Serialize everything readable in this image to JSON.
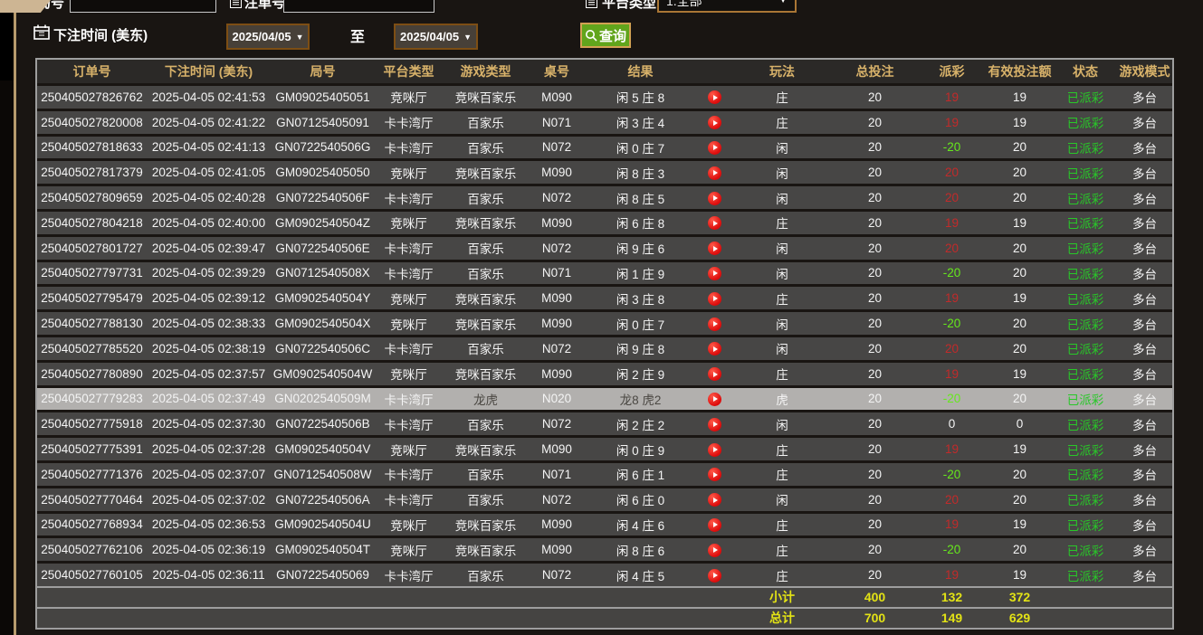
{
  "form": {
    "round_label": "局号",
    "bet_no_label": "注单号",
    "platform_label": "平台类型",
    "platform_value": "1.全部",
    "time_label": "下注时间 (美东)",
    "date_from": "2025/04/05",
    "date_to": "2025/04/05",
    "to_label": "至",
    "search_label": "查询",
    "dropdown_arrow": "▼"
  },
  "colors": {
    "accent_gold": "#d8b26a",
    "status_green": "#28c828",
    "payout_red": "#c22a2a",
    "payout_green": "#66e81c",
    "totals_yellow": "#e3e315",
    "search_button_green": "#61a51c",
    "highlight_gray": "#b2b0ae"
  },
  "table": {
    "headers": [
      "订单号",
      "下注时间 (美东)",
      "局号",
      "平台类型",
      "游戏类型",
      "桌号",
      "结果",
      "",
      "玩法",
      "总投注",
      "派彩",
      "有效投注额",
      "状态",
      "游戏模式"
    ],
    "rows": [
      {
        "order": "250405027826762",
        "time": "2025-04-05 02:41:53",
        "round": "GM09025405051",
        "hall": "竞咪厅",
        "game": "竞咪百家乐",
        "table": "M090",
        "result": "闲 5 庄 8",
        "bet": "庄",
        "total": "20",
        "payout": "19",
        "payout_color": "red",
        "valid": "19",
        "status": "已派彩",
        "mode": "多台",
        "highlight": false
      },
      {
        "order": "250405027820008",
        "time": "2025-04-05 02:41:22",
        "round": "GN07125405091",
        "hall": "卡卡湾厅",
        "game": "百家乐",
        "table": "N071",
        "result": "闲 3 庄 4",
        "bet": "庄",
        "total": "20",
        "payout": "19",
        "payout_color": "red",
        "valid": "19",
        "status": "已派彩",
        "mode": "多台",
        "highlight": false
      },
      {
        "order": "250405027818633",
        "time": "2025-04-05 02:41:13",
        "round": "GN0722540506G",
        "hall": "卡卡湾厅",
        "game": "百家乐",
        "table": "N072",
        "result": "闲 0 庄 7",
        "bet": "闲",
        "total": "20",
        "payout": "-20",
        "payout_color": "green",
        "valid": "20",
        "status": "已派彩",
        "mode": "多台",
        "highlight": false
      },
      {
        "order": "250405027817379",
        "time": "2025-04-05 02:41:05",
        "round": "GM09025405050",
        "hall": "竞咪厅",
        "game": "竞咪百家乐",
        "table": "M090",
        "result": "闲 8 庄 3",
        "bet": "闲",
        "total": "20",
        "payout": "20",
        "payout_color": "red",
        "valid": "20",
        "status": "已派彩",
        "mode": "多台",
        "highlight": false
      },
      {
        "order": "250405027809659",
        "time": "2025-04-05 02:40:28",
        "round": "GN0722540506F",
        "hall": "卡卡湾厅",
        "game": "百家乐",
        "table": "N072",
        "result": "闲 8 庄 5",
        "bet": "闲",
        "total": "20",
        "payout": "20",
        "payout_color": "red",
        "valid": "20",
        "status": "已派彩",
        "mode": "多台",
        "highlight": false
      },
      {
        "order": "250405027804218",
        "time": "2025-04-05 02:40:00",
        "round": "GM0902540504Z",
        "hall": "竞咪厅",
        "game": "竞咪百家乐",
        "table": "M090",
        "result": "闲 6 庄 8",
        "bet": "庄",
        "total": "20",
        "payout": "19",
        "payout_color": "red",
        "valid": "19",
        "status": "已派彩",
        "mode": "多台",
        "highlight": false
      },
      {
        "order": "250405027801727",
        "time": "2025-04-05 02:39:47",
        "round": "GN0722540506E",
        "hall": "卡卡湾厅",
        "game": "百家乐",
        "table": "N072",
        "result": "闲 9 庄 6",
        "bet": "闲",
        "total": "20",
        "payout": "20",
        "payout_color": "red",
        "valid": "20",
        "status": "已派彩",
        "mode": "多台",
        "highlight": false
      },
      {
        "order": "250405027797731",
        "time": "2025-04-05 02:39:29",
        "round": "GN0712540508X",
        "hall": "卡卡湾厅",
        "game": "百家乐",
        "table": "N071",
        "result": "闲 1 庄 9",
        "bet": "闲",
        "total": "20",
        "payout": "-20",
        "payout_color": "green",
        "valid": "20",
        "status": "已派彩",
        "mode": "多台",
        "highlight": false
      },
      {
        "order": "250405027795479",
        "time": "2025-04-05 02:39:12",
        "round": "GM0902540504Y",
        "hall": "竞咪厅",
        "game": "竞咪百家乐",
        "table": "M090",
        "result": "闲 3 庄 8",
        "bet": "庄",
        "total": "20",
        "payout": "19",
        "payout_color": "red",
        "valid": "19",
        "status": "已派彩",
        "mode": "多台",
        "highlight": false
      },
      {
        "order": "250405027788130",
        "time": "2025-04-05 02:38:33",
        "round": "GM0902540504X",
        "hall": "竞咪厅",
        "game": "竞咪百家乐",
        "table": "M090",
        "result": "闲 0 庄 7",
        "bet": "闲",
        "total": "20",
        "payout": "-20",
        "payout_color": "green",
        "valid": "20",
        "status": "已派彩",
        "mode": "多台",
        "highlight": false
      },
      {
        "order": "250405027785520",
        "time": "2025-04-05 02:38:19",
        "round": "GN0722540506C",
        "hall": "卡卡湾厅",
        "game": "百家乐",
        "table": "N072",
        "result": "闲 9 庄 8",
        "bet": "闲",
        "total": "20",
        "payout": "20",
        "payout_color": "red",
        "valid": "20",
        "status": "已派彩",
        "mode": "多台",
        "highlight": false
      },
      {
        "order": "250405027780890",
        "time": "2025-04-05 02:37:57",
        "round": "GM0902540504W",
        "hall": "竞咪厅",
        "game": "竞咪百家乐",
        "table": "M090",
        "result": "闲 2 庄 9",
        "bet": "庄",
        "total": "20",
        "payout": "19",
        "payout_color": "red",
        "valid": "19",
        "status": "已派彩",
        "mode": "多台",
        "highlight": false
      },
      {
        "order": "250405027779283",
        "time": "2025-04-05 02:37:49",
        "round": "GN0202540509M",
        "hall": "卡卡湾厅",
        "game": "龙虎",
        "table": "N020",
        "result": "龙8 虎2",
        "bet": "虎",
        "total": "20",
        "payout": "-20",
        "payout_color": "green",
        "valid": "20",
        "status": "已派彩",
        "mode": "多台",
        "highlight": true
      },
      {
        "order": "250405027775918",
        "time": "2025-04-05 02:37:30",
        "round": "GN0722540506B",
        "hall": "卡卡湾厅",
        "game": "百家乐",
        "table": "N072",
        "result": "闲 2 庄 2",
        "bet": "闲",
        "total": "20",
        "payout": "0",
        "payout_color": "white",
        "valid": "0",
        "status": "已派彩",
        "mode": "多台",
        "highlight": false
      },
      {
        "order": "250405027775391",
        "time": "2025-04-05 02:37:28",
        "round": "GM0902540504V",
        "hall": "竞咪厅",
        "game": "竞咪百家乐",
        "table": "M090",
        "result": "闲 0 庄 9",
        "bet": "庄",
        "total": "20",
        "payout": "19",
        "payout_color": "red",
        "valid": "19",
        "status": "已派彩",
        "mode": "多台",
        "highlight": false
      },
      {
        "order": "250405027771376",
        "time": "2025-04-05 02:37:07",
        "round": "GN0712540508W",
        "hall": "卡卡湾厅",
        "game": "百家乐",
        "table": "N071",
        "result": "闲 6 庄 1",
        "bet": "庄",
        "total": "20",
        "payout": "-20",
        "payout_color": "green",
        "valid": "20",
        "status": "已派彩",
        "mode": "多台",
        "highlight": false
      },
      {
        "order": "250405027770464",
        "time": "2025-04-05 02:37:02",
        "round": "GN0722540506A",
        "hall": "卡卡湾厅",
        "game": "百家乐",
        "table": "N072",
        "result": "闲 6 庄 0",
        "bet": "闲",
        "total": "20",
        "payout": "20",
        "payout_color": "red",
        "valid": "20",
        "status": "已派彩",
        "mode": "多台",
        "highlight": false
      },
      {
        "order": "250405027768934",
        "time": "2025-04-05 02:36:53",
        "round": "GM0902540504U",
        "hall": "竞咪厅",
        "game": "竞咪百家乐",
        "table": "M090",
        "result": "闲 4 庄 6",
        "bet": "庄",
        "total": "20",
        "payout": "19",
        "payout_color": "red",
        "valid": "19",
        "status": "已派彩",
        "mode": "多台",
        "highlight": false
      },
      {
        "order": "250405027762106",
        "time": "2025-04-05 02:36:19",
        "round": "GM0902540504T",
        "hall": "竞咪厅",
        "game": "竞咪百家乐",
        "table": "M090",
        "result": "闲 8 庄 6",
        "bet": "庄",
        "total": "20",
        "payout": "-20",
        "payout_color": "green",
        "valid": "20",
        "status": "已派彩",
        "mode": "多台",
        "highlight": false
      },
      {
        "order": "250405027760105",
        "time": "2025-04-05 02:36:11",
        "round": "GN07225405069",
        "hall": "卡卡湾厅",
        "game": "百家乐",
        "table": "N072",
        "result": "闲 4 庄 5",
        "bet": "庄",
        "total": "20",
        "payout": "19",
        "payout_color": "red",
        "valid": "19",
        "status": "已派彩",
        "mode": "多台",
        "highlight": false
      }
    ],
    "subtotal": {
      "label": "小计",
      "total": "400",
      "payout": "132",
      "valid": "372"
    },
    "grand_total": {
      "label": "总计",
      "total": "700",
      "payout": "149",
      "valid": "629"
    }
  }
}
